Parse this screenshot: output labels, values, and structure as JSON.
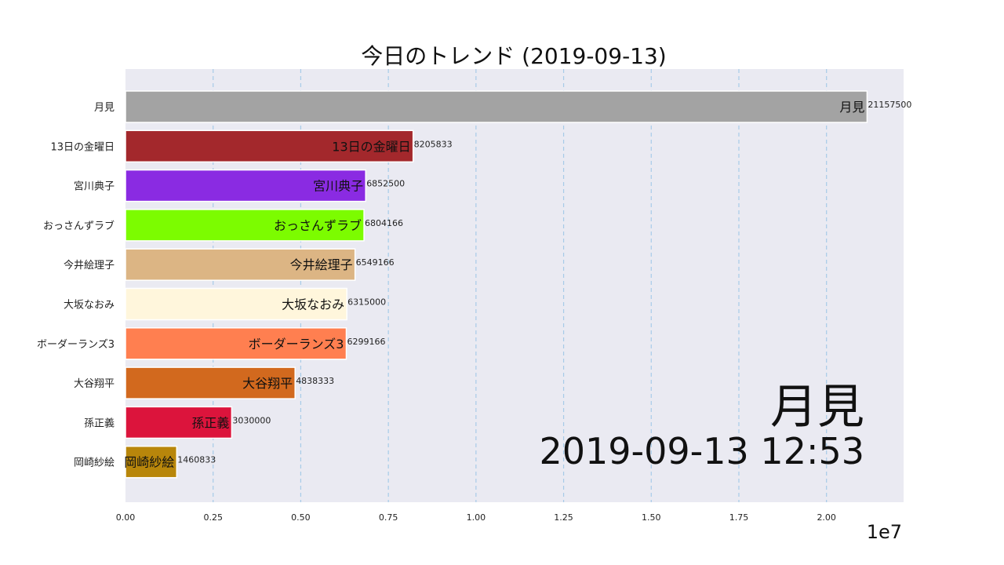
{
  "chart_data": {
    "type": "bar",
    "orientation": "horizontal",
    "title": "今日のトレンド (2019-09-13)",
    "categories": [
      "月見",
      "13日の金曜日",
      "宮川典子",
      "おっさんずラブ",
      "今井絵理子",
      "大坂なおみ",
      "ボーダーランズ3",
      "大谷翔平",
      "孫正義",
      "岡崎紗絵"
    ],
    "values": [
      21157500,
      8205833,
      6852500,
      6804166,
      6549166,
      6315000,
      6299166,
      4838333,
      3030000,
      1460833
    ],
    "value_labels": [
      "21157500",
      "8205833",
      "6852500",
      "6804166",
      "6549166",
      "6315000",
      "6299166",
      "4838333",
      "3030000",
      "1460833"
    ],
    "colors": [
      "#a3a3a3",
      "#a3282c",
      "#8a2be2",
      "#7cfc00",
      "#dcb584",
      "#fff6dc",
      "#ff7f50",
      "#d2691e",
      "#dc143c",
      "#b8860b"
    ],
    "xlim": [
      0,
      22200000
    ],
    "xticks": [
      0,
      2500000,
      5000000,
      7500000,
      10000000,
      12500000,
      15000000,
      17500000,
      20000000
    ],
    "xtick_labels": [
      "0.00",
      "0.25",
      "0.50",
      "0.75",
      "1.00",
      "1.25",
      "1.50",
      "1.75",
      "2.00"
    ],
    "x_exponent_label": "1e7",
    "grid": "vertical dashed",
    "annotation_label": "月見",
    "annotation_time": "2019-09-13 12:53"
  }
}
